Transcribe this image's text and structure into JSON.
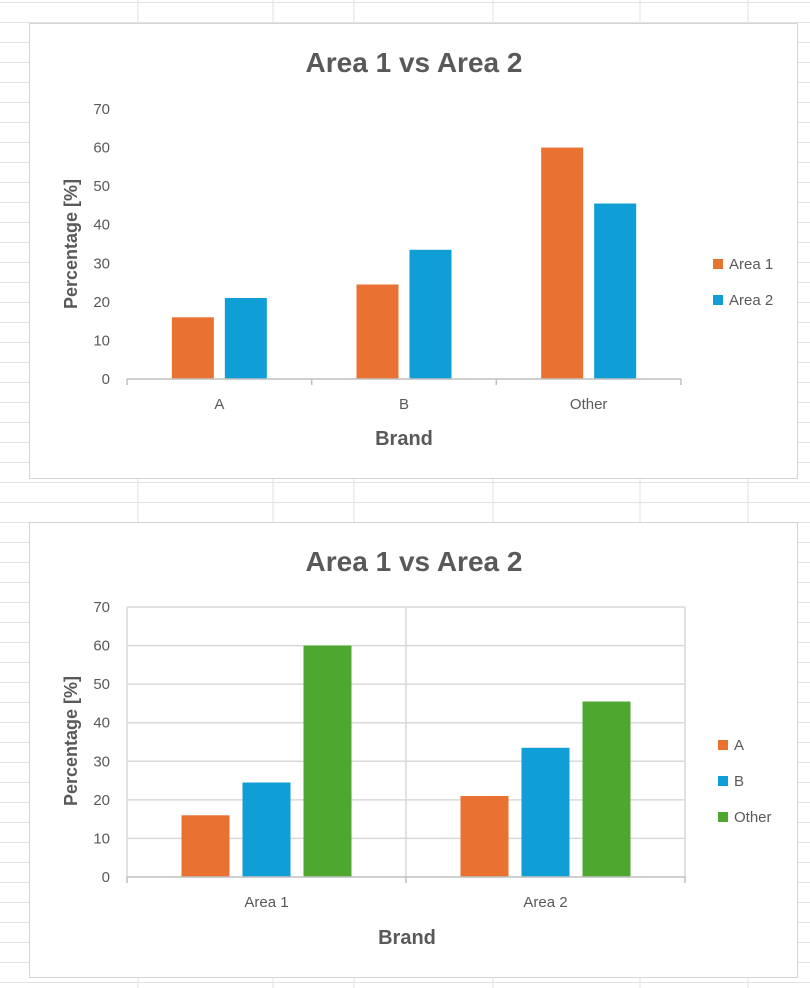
{
  "chart_data": [
    {
      "type": "bar",
      "title": "Area 1 vs Area 2",
      "xlabel": "Brand",
      "ylabel": "Percentage [%]",
      "categories": [
        "A",
        "B",
        "Other"
      ],
      "series": [
        {
          "name": "Area 1",
          "values": [
            16,
            24.5,
            60
          ],
          "color": "#E97132"
        },
        {
          "name": "Area 2",
          "values": [
            21,
            33.5,
            45.5
          ],
          "color": "#0F9ED5"
        }
      ],
      "ylim": [
        0,
        70
      ],
      "yticks": [
        0,
        10,
        20,
        30,
        40,
        50,
        60,
        70
      ],
      "gridlines": false,
      "legend_position": "right"
    },
    {
      "type": "bar",
      "title": "Area 1 vs Area 2",
      "xlabel": "Brand",
      "ylabel": "Percentage [%]",
      "categories": [
        "Area 1",
        "Area 2"
      ],
      "series": [
        {
          "name": "A",
          "values": [
            16,
            21
          ],
          "color": "#E97132"
        },
        {
          "name": "B",
          "values": [
            24.5,
            33.5
          ],
          "color": "#0F9ED5"
        },
        {
          "name": "Other",
          "values": [
            60,
            45.5
          ],
          "color": "#4EA72E"
        }
      ],
      "ylim": [
        0,
        70
      ],
      "yticks": [
        0,
        10,
        20,
        30,
        40,
        50,
        60,
        70
      ],
      "gridlines": true,
      "legend_position": "right"
    }
  ]
}
